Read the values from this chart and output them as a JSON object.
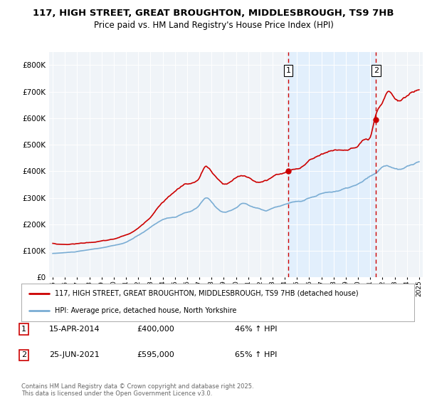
{
  "title_line1": "117, HIGH STREET, GREAT BROUGHTON, MIDDLESBROUGH, TS9 7HB",
  "title_line2": "Price paid vs. HM Land Registry's House Price Index (HPI)",
  "legend_label1": "117, HIGH STREET, GREAT BROUGHTON, MIDDLESBROUGH, TS9 7HB (detached house)",
  "legend_label2": "HPI: Average price, detached house, North Yorkshire",
  "annotation1_date": "15-APR-2014",
  "annotation1_price": "£400,000",
  "annotation1_hpi": "46% ↑ HPI",
  "annotation2_date": "25-JUN-2021",
  "annotation2_price": "£595,000",
  "annotation2_hpi": "65% ↑ HPI",
  "footer": "Contains HM Land Registry data © Crown copyright and database right 2025.\nThis data is licensed under the Open Government Licence v3.0.",
  "color_red": "#cc0000",
  "color_blue": "#7aadd4",
  "color_dashed": "#cc0000",
  "shade_color": "#ddeeff",
  "bg_color": "#f0f4f8",
  "ylim": [
    0,
    850000
  ],
  "yticks": [
    0,
    100000,
    200000,
    300000,
    400000,
    500000,
    600000,
    700000,
    800000
  ],
  "sale1_year": 2014.29,
  "sale1_price": 400000,
  "sale2_year": 2021.48,
  "sale2_price": 595000
}
